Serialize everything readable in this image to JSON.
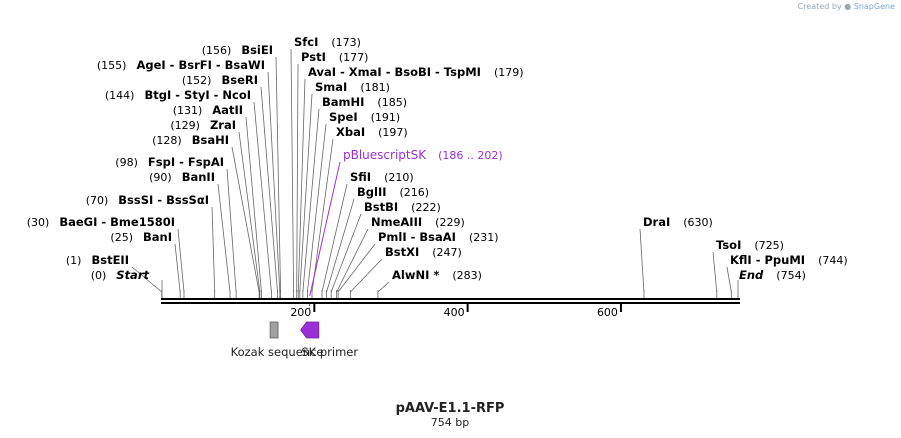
{
  "credit": {
    "prefix": "Created by",
    "brand": "SnapGene"
  },
  "map": {
    "title": "pAAV-E1.1-RFP",
    "length_label": "754 bp",
    "length": 754,
    "ticks": [
      {
        "value": 200,
        "label": "200"
      },
      {
        "value": 400,
        "label": "400"
      },
      {
        "value": 600,
        "label": "600"
      }
    ]
  },
  "sites": [
    {
      "name": "SfcI",
      "pos": 173,
      "pos_label": "(173)"
    },
    {
      "name": "PstI",
      "pos": 177,
      "pos_label": "(177)"
    },
    {
      "name": "AvaI  -  XmaI  -  BsoBI  -  TspMI",
      "pos": 179,
      "pos_label": "(179)"
    },
    {
      "name": "SmaI",
      "pos": 181,
      "pos_label": "(181)"
    },
    {
      "name": "BamHI",
      "pos": 185,
      "pos_label": "(185)"
    },
    {
      "name": "SpeI",
      "pos": 191,
      "pos_label": "(191)"
    },
    {
      "name": "XbaI",
      "pos": 197,
      "pos_label": "(197)"
    },
    {
      "name": "SfiI",
      "pos": 210,
      "pos_label": "(210)"
    },
    {
      "name": "BglII",
      "pos": 216,
      "pos_label": "(216)"
    },
    {
      "name": "BstBI",
      "pos": 222,
      "pos_label": "(222)"
    },
    {
      "name": "NmeAIII",
      "pos": 229,
      "pos_label": "(229)"
    },
    {
      "name": "PmlI  -  BsaAI",
      "pos": 231,
      "pos_label": "(231)"
    },
    {
      "name": "BstXI",
      "pos": 247,
      "pos_label": "(247)"
    },
    {
      "name": "AlwNI *",
      "pos": 283,
      "pos_label": "(283)"
    },
    {
      "name": "BsiEI",
      "pos": 156,
      "pos_label": "(156)"
    },
    {
      "name": "AgeI  -  BsrFI  -  BsaWI",
      "pos": 155,
      "pos_label": "(155)"
    },
    {
      "name": "BseRI",
      "pos": 152,
      "pos_label": "(152)"
    },
    {
      "name": "BtgI  -  StyI  -  NcoI",
      "pos": 144,
      "pos_label": "(144)"
    },
    {
      "name": "AatII",
      "pos": 131,
      "pos_label": "(131)"
    },
    {
      "name": "ZraI",
      "pos": 129,
      "pos_label": "(129)"
    },
    {
      "name": "BsaHI",
      "pos": 128,
      "pos_label": "(128)"
    },
    {
      "name": "FspI  -  FspAI",
      "pos": 98,
      "pos_label": "(98)"
    },
    {
      "name": "BanII",
      "pos": 90,
      "pos_label": "(90)"
    },
    {
      "name": "BssSI  -  BssSαI",
      "pos": 70,
      "pos_label": "(70)"
    },
    {
      "name": "BaeGI  -  Bme1580I",
      "pos": 30,
      "pos_label": "(30)"
    },
    {
      "name": "BanI",
      "pos": 25,
      "pos_label": "(25)"
    },
    {
      "name": "BstEII",
      "pos": 1,
      "pos_label": "(1)"
    },
    {
      "name": "DraI",
      "pos": 630,
      "pos_label": "(630)"
    },
    {
      "name": "TsoI",
      "pos": 725,
      "pos_label": "(725)"
    },
    {
      "name": "KflI  -  PpuMI",
      "pos": 744,
      "pos_label": "(744)"
    }
  ],
  "ends": {
    "start": {
      "name": "Start",
      "pos": 0,
      "pos_label": "(0)"
    },
    "end": {
      "name": "End",
      "pos": 754,
      "pos_label": "(754)"
    }
  },
  "primer_bind": {
    "name": "pBluescriptSK",
    "range_label": "(186 .. 202)",
    "color": "#9b30d9"
  },
  "features": [
    {
      "name": "Kozak sequence",
      "start": 143,
      "end": 152,
      "color": "#a0a0a0"
    },
    {
      "name": "SK primer",
      "start": 186,
      "end": 202,
      "color": "#9b30d9"
    }
  ]
}
